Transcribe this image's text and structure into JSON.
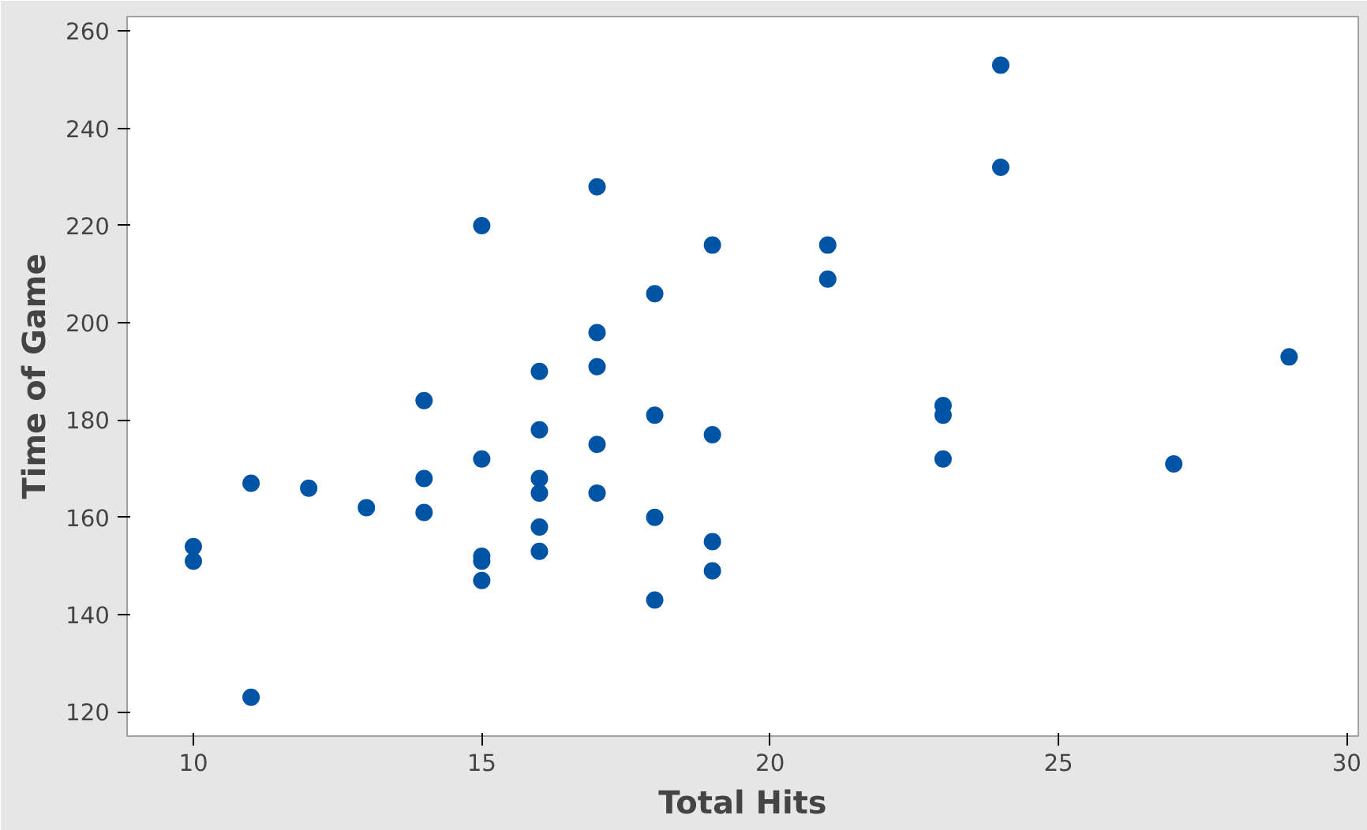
{
  "chart_data": {
    "type": "scatter",
    "xlabel": "Total Hits",
    "ylabel": "Time of Game",
    "xlim": [
      8.85,
      30.2
    ],
    "ylim": [
      115,
      263
    ],
    "xticks": [
      10,
      15,
      20,
      25,
      30
    ],
    "yticks": [
      120,
      140,
      160,
      180,
      200,
      220,
      240,
      260
    ],
    "grid": false,
    "marker": "circle",
    "series": [
      {
        "color": "#0054a6",
        "x": [
          10,
          10,
          11,
          11,
          12,
          13,
          14,
          14,
          14,
          15,
          15,
          15,
          15,
          15,
          16,
          16,
          16,
          16,
          16,
          16,
          17,
          17,
          17,
          17,
          17,
          18,
          18,
          18,
          18,
          19,
          19,
          19,
          19,
          21,
          21,
          23,
          23,
          23,
          24,
          24,
          27,
          29
        ],
        "values": [
          151,
          154,
          123,
          167,
          166,
          162,
          184,
          168,
          161,
          220,
          172,
          152,
          151,
          147,
          190,
          178,
          168,
          165,
          158,
          153,
          228,
          198,
          191,
          175,
          165,
          206,
          181,
          160,
          143,
          216,
          177,
          155,
          149,
          216,
          209,
          183,
          181,
          172,
          253,
          232,
          171,
          193
        ]
      }
    ]
  }
}
